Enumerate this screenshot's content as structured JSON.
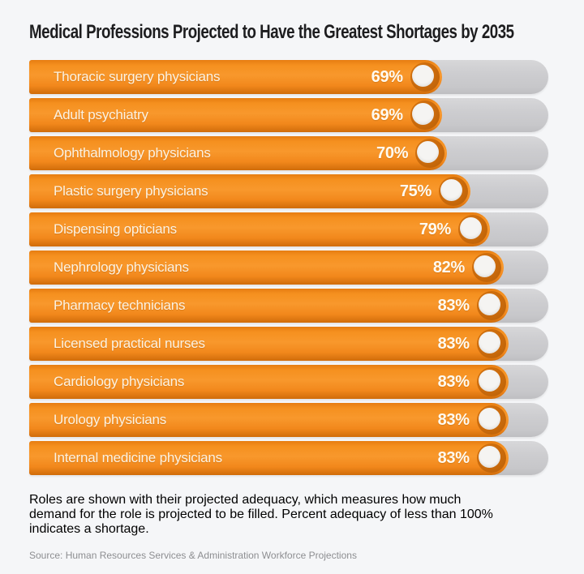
{
  "title": "Medical Professions Projected to Have the Greatest Shortages by 2035",
  "chart_data": {
    "type": "bar",
    "orientation": "horizontal",
    "title": "Medical Professions Projected to Have the Greatest Shortages by 2035",
    "categories": [
      "Thoracic surgery physicians",
      "Adult psychiatry",
      "Ophthalmology physicians",
      "Plastic surgery physicians",
      "Dispensing opticians",
      "Nephrology physicians",
      "Pharmacy technicians",
      "Licensed practical nurses",
      "Cardiology physicians",
      "Urology physicians",
      "Internal medicine physicians"
    ],
    "values": [
      69,
      69,
      70,
      75,
      79,
      82,
      83,
      83,
      83,
      83,
      83
    ],
    "value_suffix": "%",
    "xlabel": "",
    "ylabel": "",
    "xlim": [
      0,
      100
    ],
    "grid": false,
    "legend": false,
    "bar_color": "#f2881c",
    "track_color": "#c9c9cc",
    "fill_widths_pct": [
      79.5,
      79.5,
      80.5,
      85.0,
      88.75,
      91.4,
      92.3,
      92.3,
      92.3,
      92.3,
      92.3
    ]
  },
  "note": {
    "lines": [
      "Roles are shown with their projected adequacy, which measures how much",
      "demand for the role is projected to be filled. Percent adequacy of less than 100%",
      "indicates a shortage."
    ],
    "full_text": "Roles are shown with their projected adequacy, which measures how much demand for the role is projected to be filled. Percent adequacy of less than 100% indicates a shortage."
  },
  "source": "Source: Human Resources Services & Administration Workforce Projections"
}
